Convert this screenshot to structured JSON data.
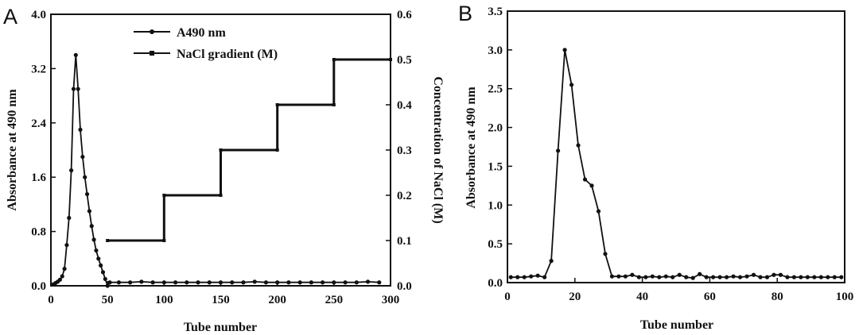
{
  "chart_data": [
    {
      "panel": "A",
      "type": "line",
      "xlabel": "Tube number",
      "ylabel": "Absorbance at 490 nm",
      "y2label": "Concentration of NaCl (M)",
      "xlim": [
        0,
        300
      ],
      "ylim": [
        0,
        4.0
      ],
      "y2lim": [
        0,
        0.6
      ],
      "xticks": [
        "0",
        "50",
        "100",
        "150",
        "200",
        "250",
        "300"
      ],
      "yticks": [
        "0.0",
        "0.8",
        "1.6",
        "2.4",
        "3.2",
        "4.0"
      ],
      "y2ticks": [
        "0.0",
        "0.1",
        "0.2",
        "0.3",
        "0.4",
        "0.5",
        "0.6"
      ],
      "legend_position": "top-center",
      "color": "#111111",
      "series": [
        {
          "name": "A490 nm",
          "axis": "left",
          "marker": "circle",
          "x": [
            2,
            4,
            6,
            8,
            10,
            12,
            14,
            16,
            18,
            20,
            22,
            24,
            26,
            28,
            30,
            32,
            34,
            36,
            38,
            40,
            42,
            44,
            46,
            48,
            50,
            52,
            60,
            70,
            80,
            90,
            100,
            110,
            120,
            130,
            140,
            150,
            160,
            170,
            180,
            190,
            200,
            210,
            220,
            230,
            240,
            250,
            260,
            270,
            280,
            290
          ],
          "y": [
            0.02,
            0.04,
            0.06,
            0.09,
            0.14,
            0.25,
            0.6,
            1.0,
            1.7,
            2.9,
            3.4,
            2.9,
            2.3,
            1.9,
            1.6,
            1.35,
            1.1,
            0.88,
            0.68,
            0.52,
            0.4,
            0.3,
            0.2,
            0.1,
            0.0,
            0.05,
            0.05,
            0.05,
            0.06,
            0.05,
            0.05,
            0.05,
            0.05,
            0.05,
            0.05,
            0.05,
            0.05,
            0.05,
            0.06,
            0.05,
            0.05,
            0.05,
            0.05,
            0.05,
            0.05,
            0.05,
            0.05,
            0.05,
            0.06,
            0.05
          ]
        },
        {
          "name": "NaCl gradient (M)",
          "axis": "right",
          "marker": "square",
          "x": [
            50,
            100,
            100,
            150,
            150,
            200,
            200,
            250,
            250,
            300
          ],
          "y": [
            0.1,
            0.1,
            0.2,
            0.2,
            0.3,
            0.3,
            0.4,
            0.4,
            0.5,
            0.5
          ]
        }
      ]
    },
    {
      "panel": "B",
      "type": "line",
      "xlabel": "Tube number",
      "ylabel": "Absorbance at 490 nm",
      "xlim": [
        0,
        100
      ],
      "ylim": [
        0,
        3.5
      ],
      "xticks": [
        "0",
        "20",
        "40",
        "60",
        "80",
        "100"
      ],
      "yticks": [
        "0.0",
        "0.5",
        "1.0",
        "1.5",
        "2.0",
        "2.5",
        "3.0",
        "3.5"
      ],
      "color": "#111111",
      "series": [
        {
          "marker": "circle",
          "x": [
            1,
            3,
            5,
            7,
            9,
            11,
            13,
            15,
            17,
            19,
            21,
            23,
            25,
            27,
            29,
            31,
            33,
            35,
            37,
            39,
            41,
            43,
            45,
            47,
            49,
            51,
            53,
            55,
            57,
            59,
            61,
            63,
            65,
            67,
            69,
            71,
            73,
            75,
            77,
            79,
            81,
            83,
            85,
            87,
            89,
            91,
            93,
            95,
            97,
            99
          ],
          "y": [
            0.07,
            0.07,
            0.07,
            0.08,
            0.09,
            0.07,
            0.28,
            1.7,
            3.0,
            2.55,
            1.77,
            1.33,
            1.25,
            0.92,
            0.37,
            0.08,
            0.08,
            0.08,
            0.1,
            0.07,
            0.07,
            0.08,
            0.07,
            0.08,
            0.07,
            0.1,
            0.07,
            0.06,
            0.11,
            0.07,
            0.07,
            0.07,
            0.07,
            0.08,
            0.07,
            0.08,
            0.1,
            0.07,
            0.07,
            0.1,
            0.1,
            0.07,
            0.07,
            0.07,
            0.07,
            0.07,
            0.07,
            0.07,
            0.07,
            0.07
          ]
        }
      ]
    }
  ],
  "panels": {
    "a_letter": "A",
    "b_letter": "B"
  }
}
